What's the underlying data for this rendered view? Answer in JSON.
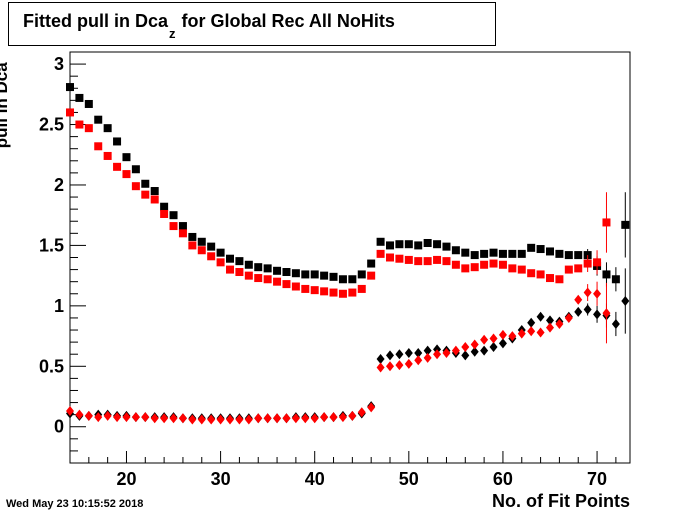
{
  "chart_data": {
    "type": "scatter",
    "title": {
      "main": "Fitted pull in Dca",
      "sub": "z",
      "rest": " for Global Rec All NoHits"
    },
    "ylabel": {
      "main": "pull in Dca",
      "sub": "z"
    },
    "xlabel": "No. of Fit Points",
    "timestamp": "Wed May 23 10:15:52 2018",
    "xlim": [
      14,
      73.5
    ],
    "ylim": [
      -0.3,
      3.1
    ],
    "x_ticks": [
      20,
      30,
      40,
      50,
      60,
      70
    ],
    "x_tick_labels": [
      "20",
      "30",
      "40",
      "50",
      "60",
      "70"
    ],
    "y_ticks": [
      0,
      0.5,
      1,
      1.5,
      2,
      2.5,
      3
    ],
    "y_tick_labels": [
      "0",
      "0.5",
      "1",
      "1.5",
      "2",
      "2.5",
      "3"
    ],
    "grid": false,
    "legend": "none",
    "series": [
      {
        "marker": "square",
        "color": "#000000",
        "x": [
          14,
          15,
          16,
          17,
          18,
          19,
          20,
          21,
          22,
          23,
          24,
          25,
          26,
          27,
          28,
          29,
          30,
          31,
          32,
          33,
          34,
          35,
          36,
          37,
          38,
          39,
          40,
          41,
          42,
          43,
          44,
          45,
          46,
          47,
          48,
          49,
          50,
          51,
          52,
          53,
          54,
          55,
          56,
          57,
          58,
          59,
          60,
          61,
          62,
          63,
          64,
          65,
          66,
          67,
          68,
          69,
          70,
          71,
          72,
          73
        ],
        "y": [
          2.81,
          2.72,
          2.67,
          2.54,
          2.47,
          2.36,
          2.23,
          2.13,
          2.01,
          1.95,
          1.82,
          1.75,
          1.66,
          1.57,
          1.53,
          1.49,
          1.44,
          1.39,
          1.37,
          1.34,
          1.32,
          1.31,
          1.29,
          1.28,
          1.27,
          1.26,
          1.26,
          1.25,
          1.24,
          1.22,
          1.22,
          1.26,
          1.35,
          1.53,
          1.5,
          1.51,
          1.51,
          1.5,
          1.52,
          1.51,
          1.49,
          1.46,
          1.44,
          1.42,
          1.43,
          1.44,
          1.43,
          1.43,
          1.43,
          1.48,
          1.47,
          1.45,
          1.43,
          1.42,
          1.42,
          1.42,
          1.33,
          1.26,
          1.22,
          1.67
        ],
        "err": [
          0,
          0,
          0,
          0,
          0,
          0,
          0,
          0,
          0,
          0,
          0,
          0,
          0,
          0,
          0,
          0,
          0,
          0,
          0,
          0,
          0,
          0,
          0,
          0,
          0,
          0,
          0,
          0,
          0,
          0,
          0,
          0,
          0,
          0,
          0,
          0,
          0,
          0,
          0,
          0,
          0,
          0,
          0,
          0,
          0,
          0,
          0,
          0,
          0,
          0,
          0,
          0,
          0,
          0,
          0,
          0.05,
          0.08,
          0.1,
          0.1,
          0.27
        ]
      },
      {
        "marker": "square",
        "color": "#ff0000",
        "x": [
          14,
          15,
          16,
          17,
          18,
          19,
          20,
          21,
          22,
          23,
          24,
          25,
          26,
          27,
          28,
          29,
          30,
          31,
          32,
          33,
          34,
          35,
          36,
          37,
          38,
          39,
          40,
          41,
          42,
          43,
          44,
          45,
          46,
          47,
          48,
          49,
          50,
          51,
          52,
          53,
          54,
          55,
          56,
          57,
          58,
          59,
          60,
          61,
          62,
          63,
          64,
          65,
          66,
          67,
          68,
          69,
          70,
          71
        ],
        "y": [
          2.6,
          2.5,
          2.47,
          2.32,
          2.24,
          2.15,
          2.09,
          1.99,
          1.92,
          1.88,
          1.76,
          1.66,
          1.6,
          1.5,
          1.46,
          1.41,
          1.36,
          1.3,
          1.28,
          1.25,
          1.23,
          1.22,
          1.2,
          1.18,
          1.16,
          1.14,
          1.13,
          1.12,
          1.11,
          1.1,
          1.11,
          1.14,
          1.25,
          1.43,
          1.4,
          1.39,
          1.38,
          1.37,
          1.37,
          1.38,
          1.37,
          1.34,
          1.31,
          1.32,
          1.34,
          1.35,
          1.34,
          1.31,
          1.3,
          1.27,
          1.26,
          1.23,
          1.22,
          1.3,
          1.31,
          1.35,
          1.36,
          1.69
        ],
        "err": [
          0,
          0,
          0,
          0,
          0,
          0,
          0,
          0,
          0,
          0,
          0,
          0,
          0,
          0,
          0,
          0,
          0,
          0,
          0,
          0,
          0,
          0,
          0,
          0,
          0,
          0,
          0,
          0,
          0,
          0,
          0,
          0,
          0,
          0,
          0,
          0,
          0,
          0,
          0,
          0,
          0,
          0,
          0,
          0,
          0,
          0,
          0,
          0,
          0,
          0,
          0,
          0,
          0,
          0,
          0,
          0.07,
          0.1,
          0.25
        ]
      },
      {
        "marker": "diamond",
        "color": "#000000",
        "x": [
          14,
          15,
          16,
          17,
          18,
          19,
          20,
          21,
          22,
          23,
          24,
          25,
          26,
          27,
          28,
          29,
          30,
          31,
          32,
          33,
          34,
          35,
          36,
          37,
          38,
          39,
          40,
          41,
          42,
          43,
          44,
          45,
          46,
          47,
          48,
          49,
          50,
          51,
          52,
          53,
          54,
          55,
          56,
          57,
          58,
          59,
          60,
          61,
          62,
          63,
          64,
          65,
          66,
          67,
          68,
          69,
          70,
          71,
          72,
          73
        ],
        "y": [
          0.11,
          0.09,
          0.09,
          0.1,
          0.1,
          0.09,
          0.09,
          0.08,
          0.08,
          0.08,
          0.08,
          0.08,
          0.07,
          0.07,
          0.07,
          0.07,
          0.07,
          0.07,
          0.07,
          0.07,
          0.07,
          0.07,
          0.07,
          0.07,
          0.08,
          0.08,
          0.08,
          0.08,
          0.08,
          0.09,
          0.09,
          0.11,
          0.17,
          0.56,
          0.59,
          0.6,
          0.61,
          0.61,
          0.63,
          0.64,
          0.63,
          0.61,
          0.59,
          0.62,
          0.63,
          0.66,
          0.69,
          0.73,
          0.8,
          0.86,
          0.91,
          0.88,
          0.87,
          0.91,
          0.95,
          0.97,
          0.93,
          0.92,
          0.85,
          1.04
        ],
        "err": [
          0,
          0,
          0,
          0,
          0,
          0,
          0,
          0,
          0,
          0,
          0,
          0,
          0,
          0,
          0,
          0,
          0,
          0,
          0,
          0,
          0,
          0,
          0,
          0,
          0,
          0,
          0,
          0,
          0,
          0,
          0,
          0,
          0,
          0,
          0,
          0,
          0,
          0,
          0,
          0,
          0,
          0,
          0,
          0,
          0,
          0,
          0,
          0,
          0,
          0,
          0,
          0,
          0,
          0,
          0,
          0.05,
          0.07,
          0.1,
          0.1,
          0.27
        ]
      },
      {
        "marker": "diamond",
        "color": "#ff0000",
        "x": [
          14,
          15,
          16,
          17,
          18,
          19,
          20,
          21,
          22,
          23,
          24,
          25,
          26,
          27,
          28,
          29,
          30,
          31,
          32,
          33,
          34,
          35,
          36,
          37,
          38,
          39,
          40,
          41,
          42,
          43,
          44,
          45,
          46,
          47,
          48,
          49,
          50,
          51,
          52,
          53,
          54,
          55,
          56,
          57,
          58,
          59,
          60,
          61,
          62,
          63,
          64,
          65,
          66,
          67,
          68,
          69,
          70,
          71
        ],
        "y": [
          0.13,
          0.1,
          0.09,
          0.08,
          0.09,
          0.08,
          0.08,
          0.08,
          0.08,
          0.07,
          0.07,
          0.07,
          0.07,
          0.06,
          0.06,
          0.06,
          0.06,
          0.06,
          0.06,
          0.06,
          0.07,
          0.07,
          0.07,
          0.07,
          0.07,
          0.07,
          0.07,
          0.08,
          0.08,
          0.08,
          0.09,
          0.12,
          0.16,
          0.49,
          0.5,
          0.51,
          0.52,
          0.55,
          0.57,
          0.6,
          0.61,
          0.63,
          0.66,
          0.68,
          0.72,
          0.73,
          0.76,
          0.75,
          0.77,
          0.79,
          0.78,
          0.82,
          0.85,
          0.9,
          1.05,
          1.11,
          1.1,
          0.94
        ],
        "err": [
          0,
          0,
          0,
          0,
          0,
          0,
          0,
          0,
          0,
          0,
          0,
          0,
          0,
          0,
          0,
          0,
          0,
          0,
          0,
          0,
          0,
          0,
          0,
          0,
          0,
          0,
          0,
          0,
          0,
          0,
          0,
          0,
          0,
          0,
          0,
          0,
          0,
          0,
          0,
          0,
          0,
          0,
          0,
          0,
          0,
          0,
          0,
          0,
          0,
          0,
          0,
          0,
          0,
          0,
          0,
          0.07,
          0.1,
          0.25
        ]
      }
    ]
  }
}
